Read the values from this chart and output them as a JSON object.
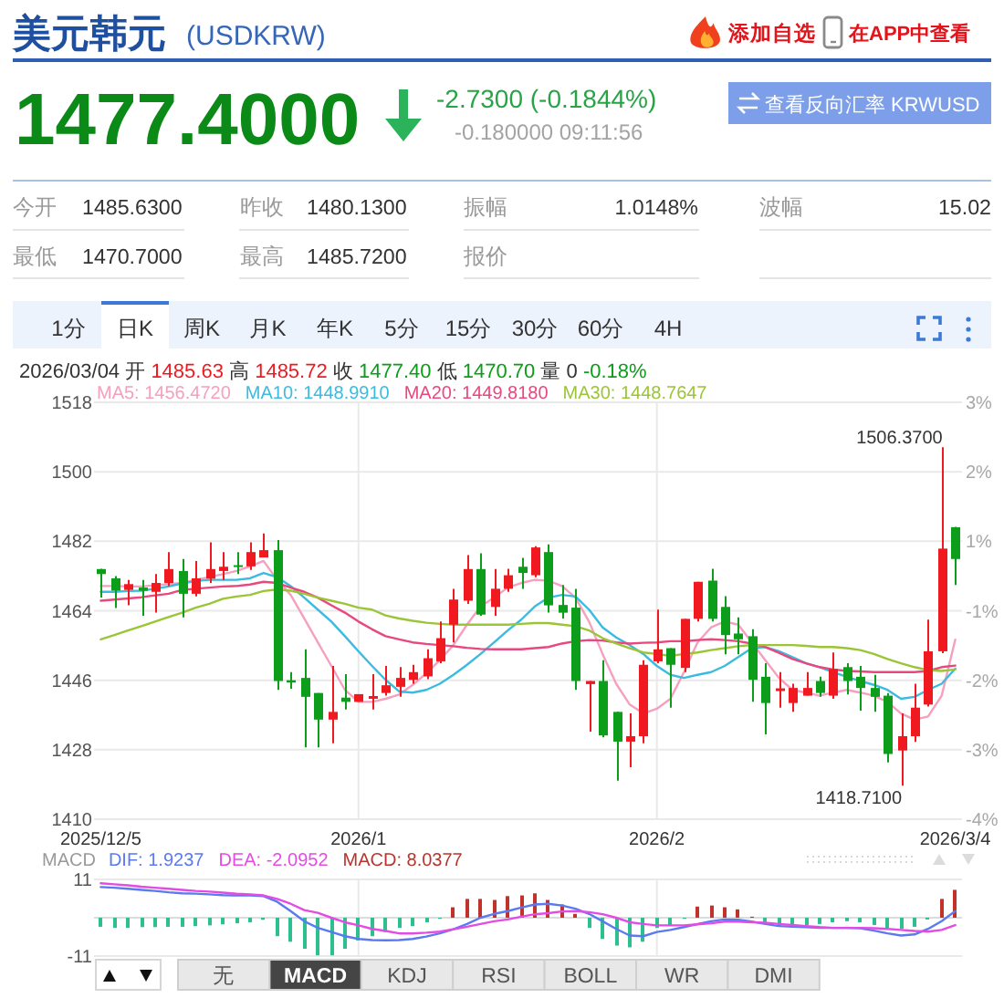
{
  "chart_data": [
    {
      "type": "other",
      "title": "美元韩元",
      "subtitle": "(USDKRW)",
      "annotations": [
        "添加自选",
        "在APP中查看",
        "1477.4000",
        "-2.7300 (-0.1844%)",
        "-0.180000 09:11:56",
        "查看反向汇率 KRWUSD",
        "今开",
        "1485.6300",
        "昨收",
        "1480.1300",
        "振幅",
        "1.0148%",
        "波幅",
        "15.02",
        "最低",
        "1470.7000",
        "最高",
        "1485.7200",
        "报价",
        "1分",
        "日K",
        "周K",
        "月K",
        "年K",
        "5分",
        "15分",
        "30分",
        "60分",
        "4H"
      ]
    },
    {
      "type": "candlestick",
      "subtitle": "2026/03/04 开 1485.63 高 1485.72 收 1477.40 低 1470.70 量 0 -0.18%",
      "categories": [
        "2025/12/5",
        null,
        null,
        null,
        null,
        null,
        null,
        null,
        null,
        null,
        null,
        null,
        null,
        null,
        null,
        null,
        null,
        null,
        null,
        "2026/1",
        null,
        null,
        null,
        null,
        null,
        null,
        null,
        null,
        null,
        null,
        null,
        null,
        null,
        null,
        null,
        null,
        null,
        null,
        null,
        null,
        null,
        "2026/2",
        null,
        null,
        null,
        null,
        null,
        null,
        null,
        null,
        null,
        null,
        null,
        null,
        null,
        null,
        null,
        null,
        null,
        null,
        null,
        null,
        null,
        "2026/3/4"
      ],
      "ohlc": [
        [
          1474.8,
          1474.9,
          1467.4,
          1473.5
        ],
        [
          1472.4,
          1473.0,
          1464.7,
          1469.2
        ],
        [
          1469.4,
          1472.0,
          1465.4,
          1470.9
        ],
        [
          1470.0,
          1472.0,
          1462.7,
          1469.2
        ],
        [
          1468.9,
          1473.5,
          1463.5,
          1471.2
        ],
        [
          1471.2,
          1479.2,
          1470.4,
          1474.8
        ],
        [
          1474.3,
          1477.4,
          1462.3,
          1468.4
        ],
        [
          1468.4,
          1476.9,
          1467.7,
          1472.4
        ],
        [
          1472.3,
          1481.7,
          1471.2,
          1474.8
        ],
        [
          1474.3,
          1479.2,
          1472.0,
          1475.4
        ],
        [
          1475.8,
          1479.2,
          1473.5,
          1475.5
        ],
        [
          1475.5,
          1481.7,
          1474.6,
          1479.2
        ],
        [
          1477.8,
          1484.0,
          1477.8,
          1479.7
        ],
        [
          1479.7,
          1482.3,
          1443.5,
          1445.8
        ],
        [
          1446.0,
          1448.1,
          1443.8,
          1445.4
        ],
        [
          1446.6,
          1454.0,
          1428.6,
          1441.7
        ],
        [
          1442.7,
          1442.7,
          1428.6,
          1435.8
        ],
        [
          1435.8,
          1449.7,
          1429.7,
          1437.8
        ],
        [
          1441.5,
          1447.6,
          1438.4,
          1440.4
        ],
        [
          1440.4,
          1442.4,
          1440.4,
          1442.4
        ],
        [
          1441.2,
          1447.6,
          1438.4,
          1441.9
        ],
        [
          1442.7,
          1449.7,
          1442.0,
          1444.7
        ],
        [
          1444.3,
          1449.4,
          1441.7,
          1446.6
        ],
        [
          1446.1,
          1450.0,
          1445.1,
          1448.1
        ],
        [
          1447.0,
          1454.0,
          1446.3,
          1451.7
        ],
        [
          1450.9,
          1461.2,
          1450.4,
          1456.9
        ],
        [
          1460.4,
          1469.7,
          1455.8,
          1466.9
        ],
        [
          1466.6,
          1478.4,
          1465.8,
          1474.8
        ],
        [
          1474.8,
          1478.9,
          1462.7,
          1463.0
        ],
        [
          1465.0,
          1474.8,
          1462.7,
          1469.7
        ],
        [
          1469.7,
          1474.9,
          1468.9,
          1473.2
        ],
        [
          1475.4,
          1477.7,
          1469.7,
          1473.8
        ],
        [
          1473.2,
          1480.7,
          1472.7,
          1480.4
        ],
        [
          1479.2,
          1481.2,
          1463.5,
          1465.4
        ],
        [
          1465.5,
          1470.7,
          1462.0,
          1463.5
        ],
        [
          1464.8,
          1469.7,
          1443.5,
          1445.8
        ],
        [
          1445.0,
          1445.8,
          1432.7,
          1445.8
        ],
        [
          1445.8,
          1451.2,
          1431.2,
          1431.7
        ],
        [
          1437.8,
          1437.8,
          1420.0,
          1430.1
        ],
        [
          1430.1,
          1437.4,
          1423.5,
          1431.5
        ],
        [
          1431.5,
          1451.2,
          1429.7,
          1450.0
        ],
        [
          1450.9,
          1464.3,
          1450.4,
          1454.0
        ],
        [
          1454.3,
          1454.3,
          1438.9,
          1450.0
        ],
        [
          1449.2,
          1461.9,
          1448.1,
          1461.9
        ],
        [
          1461.9,
          1471.5,
          1461.2,
          1471.5
        ],
        [
          1471.8,
          1474.9,
          1461.2,
          1461.9
        ],
        [
          1465.0,
          1467.8,
          1452.7,
          1457.7
        ],
        [
          1458.1,
          1462.3,
          1452.7,
          1456.6
        ],
        [
          1457.4,
          1459.2,
          1440.4,
          1446.1
        ],
        [
          1446.9,
          1450.4,
          1432.0,
          1440.1
        ],
        [
          1443.2,
          1448.1,
          1438.9,
          1443.9
        ],
        [
          1440.1,
          1445.1,
          1437.8,
          1444.0
        ],
        [
          1442.0,
          1448.1,
          1442.0,
          1444.0
        ],
        [
          1445.8,
          1446.9,
          1441.7,
          1442.7
        ],
        [
          1442.0,
          1453.2,
          1441.2,
          1448.9
        ],
        [
          1449.4,
          1450.4,
          1442.3,
          1445.8
        ],
        [
          1446.9,
          1449.7,
          1438.1,
          1444.0
        ],
        [
          1444.0,
          1447.4,
          1437.8,
          1441.7
        ],
        [
          1442.0,
          1442.7,
          1424.7,
          1426.9
        ],
        [
          1427.8,
          1437.4,
          1418.71,
          1431.5
        ],
        [
          1431.5,
          1445.1,
          1430.0,
          1438.9
        ],
        [
          1439.7,
          1461.7,
          1439.2,
          1453.5
        ],
        [
          1453.5,
          1506.37,
          1453.0,
          1480.1
        ],
        [
          1485.63,
          1485.72,
          1470.7,
          1477.4
        ]
      ],
      "colors": [
        "#0c9e1a",
        "#0c9e1a",
        "#f0191f",
        "#0c9e1a",
        "#f0191f",
        "#f0191f",
        "#0c9e1a",
        "#f0191f",
        "#f0191f",
        "#f0191f",
        "#0c9e1a",
        "#f0191f",
        "#f0191f",
        "#0c9e1a",
        "#0c9e1a",
        "#0c9e1a",
        "#0c9e1a",
        "#f0191f",
        "#0c9e1a",
        "#f0191f",
        "#f0191f",
        "#f0191f",
        "#f0191f",
        "#f0191f",
        "#f0191f",
        "#f0191f",
        "#f0191f",
        "#f0191f",
        "#0c9e1a",
        "#f0191f",
        "#f0191f",
        "#0c9e1a",
        "#f0191f",
        "#0c9e1a",
        "#0c9e1a",
        "#0c9e1a",
        "#f0191f",
        "#0c9e1a",
        "#0c9e1a",
        "#f0191f",
        "#f0191f",
        "#f0191f",
        "#0c9e1a",
        "#f0191f",
        "#f0191f",
        "#0c9e1a",
        "#0c9e1a",
        "#0c9e1a",
        "#0c9e1a",
        "#0c9e1a",
        "#f0191f",
        "#f0191f",
        "#f0191f",
        "#0c9e1a",
        "#f0191f",
        "#0c9e1a",
        "#0c9e1a",
        "#0c9e1a",
        "#0c9e1a",
        "#f0191f",
        "#f0191f",
        "#f0191f",
        "#f0191f",
        "#0c9e1a"
      ],
      "series": [
        {
          "type": "line",
          "name": "MA5: 1456.4720",
          "color": "#f5a0be",
          "values": [
            1470.4,
            1470.4,
            1470.3,
            1470.3,
            1470.6,
            1470.9,
            1471.2,
            1472.0,
            1472.7,
            1473.5,
            1474.3,
            1475.5,
            1476.9,
            1472.0,
            1468.1,
            1462.0,
            1455.8,
            1449.7,
            1443.5,
            1440.4,
            1440.4,
            1441.2,
            1442.3,
            1444.8,
            1447.8,
            1451.2,
            1455.1,
            1460.4,
            1465.1,
            1467.4,
            1470.0,
            1471.2,
            1472.0,
            1471.8,
            1470.4,
            1467.4,
            1461.2,
            1452.8,
            1445.1,
            1439.7,
            1437.4,
            1438.6,
            1441.2,
            1448.1,
            1455.8,
            1459.7,
            1461.2,
            1460.4,
            1455.8,
            1451.2,
            1446.6,
            1443.5,
            1442.8,
            1442.0,
            1442.8,
            1443.5,
            1442.8,
            1442.0,
            1440.4,
            1437.4,
            1435.8,
            1436.6,
            1442.0,
            1456.5
          ]
        },
        {
          "type": "line",
          "name": "MA10: 1448.9910",
          "color": "#3bbbe0",
          "values": [
            1468.9,
            1468.9,
            1469.1,
            1469.2,
            1469.7,
            1470.3,
            1471.1,
            1471.7,
            1472.0,
            1472.0,
            1472.0,
            1472.4,
            1473.8,
            1472.7,
            1470.4,
            1467.4,
            1464.3,
            1461.2,
            1457.4,
            1453.5,
            1449.7,
            1446.1,
            1443.1,
            1442.8,
            1443.5,
            1445.1,
            1447.4,
            1450.0,
            1452.8,
            1455.8,
            1458.9,
            1461.7,
            1465.1,
            1467.4,
            1468.1,
            1467.7,
            1464.3,
            1459.7,
            1457.1,
            1455.1,
            1452.8,
            1449.7,
            1447.4,
            1446.6,
            1447.4,
            1448.1,
            1449.7,
            1452.0,
            1454.3,
            1454.6,
            1453.5,
            1452.0,
            1450.4,
            1449.4,
            1448.1,
            1446.9,
            1445.8,
            1444.8,
            1443.5,
            1441.2,
            1441.7,
            1443.5,
            1445.1,
            1449.0
          ]
        },
        {
          "type": "line",
          "name": "MA20: 1449.8180",
          "color": "#e8487e",
          "values": [
            1466.6,
            1466.9,
            1467.2,
            1467.5,
            1468.0,
            1468.4,
            1469.4,
            1469.7,
            1470.0,
            1470.3,
            1470.4,
            1470.8,
            1471.5,
            1471.2,
            1470.0,
            1468.9,
            1467.4,
            1465.4,
            1463.5,
            1461.2,
            1459.2,
            1457.4,
            1456.6,
            1455.8,
            1455.4,
            1455.1,
            1454.8,
            1454.4,
            1454.1,
            1454.0,
            1454.0,
            1454.0,
            1454.3,
            1454.6,
            1455.5,
            1456.1,
            1456.4,
            1456.3,
            1455.8,
            1455.5,
            1455.7,
            1455.8,
            1456.1,
            1456.1,
            1456.4,
            1456.6,
            1456.4,
            1456.1,
            1455.5,
            1454.6,
            1453.1,
            1451.5,
            1450.4,
            1449.4,
            1448.8,
            1448.4,
            1448.3,
            1448.1,
            1448.1,
            1448.1,
            1448.1,
            1448.4,
            1449.4,
            1449.8
          ]
        },
        {
          "type": "line",
          "name": "MA30: 1448.7647",
          "color": "#9cc437",
          "values": [
            1456.6,
            1457.7,
            1458.9,
            1460.0,
            1461.2,
            1462.4,
            1463.5,
            1464.8,
            1465.8,
            1467.1,
            1467.7,
            1468.1,
            1469.1,
            1469.5,
            1469.2,
            1468.4,
            1467.4,
            1466.6,
            1465.8,
            1464.8,
            1464.3,
            1462.8,
            1462.0,
            1461.4,
            1460.9,
            1460.6,
            1460.4,
            1460.4,
            1460.4,
            1460.4,
            1460.4,
            1460.6,
            1460.8,
            1460.8,
            1460.4,
            1460.0,
            1458.9,
            1456.9,
            1455.5,
            1454.3,
            1453.2,
            1452.8,
            1452.3,
            1452.8,
            1453.2,
            1453.8,
            1454.3,
            1454.8,
            1455.1,
            1455.1,
            1455.1,
            1455.1,
            1454.9,
            1454.6,
            1454.6,
            1454.3,
            1453.8,
            1452.8,
            1451.5,
            1450.4,
            1449.4,
            1448.6,
            1448.4,
            1448.8
          ]
        }
      ],
      "ylim": [
        1410,
        1518
      ],
      "yticks": [
        1410,
        1428,
        1446,
        1464,
        1482,
        1500,
        1518
      ],
      "grid": true,
      "legend": "top left",
      "annotations": [
        "1506.3700",
        "1418.7100",
        "3%",
        "2%",
        "1%",
        "-1%",
        "-2%",
        "-3%",
        "-4%"
      ]
    },
    {
      "type": "bar",
      "legend_title": "MACD",
      "categories": [
        "2025/12/5",
        null,
        null,
        null,
        null,
        null,
        null,
        null,
        null,
        null,
        null,
        null,
        null,
        null,
        null,
        null,
        null,
        null,
        null,
        "2026/1",
        null,
        null,
        null,
        null,
        null,
        null,
        null,
        null,
        null,
        null,
        null,
        null,
        null,
        null,
        null,
        null,
        null,
        null,
        null,
        null,
        null,
        "2026/2",
        null,
        null,
        null,
        null,
        null,
        null,
        null,
        null,
        null,
        null,
        null,
        null,
        null,
        null,
        null,
        null,
        null,
        null,
        null,
        null,
        null,
        "2026/3/4"
      ],
      "series": [
        {
          "type": "line",
          "name": "DIF: 1.9237",
          "color": "#5b7af0",
          "values": [
            8.8,
            8.6,
            8.3,
            8.0,
            7.7,
            7.3,
            7.0,
            6.9,
            6.7,
            6.5,
            6.4,
            6.4,
            6.2,
            4.6,
            1.9,
            -1.0,
            -2.9,
            -4.1,
            -5.3,
            -6.1,
            -6.4,
            -6.5,
            -6.4,
            -6.1,
            -5.4,
            -4.5,
            -3.3,
            -1.8,
            0,
            1.1,
            1.9,
            2.9,
            3.8,
            4.0,
            3.5,
            2.6,
            1.1,
            -1.0,
            -3.2,
            -5.1,
            -5.3,
            -4.1,
            -3.5,
            -2.7,
            -1.8,
            -1.0,
            -0.5,
            -0.6,
            -1.1,
            -1.8,
            -2.4,
            -2.6,
            -2.7,
            -2.9,
            -2.9,
            -2.9,
            -3.0,
            -3.7,
            -4.5,
            -5.1,
            -4.8,
            -3.2,
            -1.0,
            1.9
          ]
        },
        {
          "type": "line",
          "name": "DEA: -2.0952",
          "color": "#e44be4",
          "values": [
            9.9,
            9.6,
            9.3,
            8.9,
            8.6,
            8.3,
            8.0,
            7.7,
            7.5,
            7.2,
            6.9,
            6.7,
            6.4,
            5.4,
            4.0,
            2.2,
            1.4,
            0,
            -1.3,
            -2.2,
            -3.2,
            -3.8,
            -4.5,
            -4.5,
            -4.3,
            -4.0,
            -3.3,
            -2.6,
            -1.8,
            -1.0,
            -0.5,
            0.3,
            1.0,
            1.3,
            1.8,
            1.9,
            1.6,
            1.0,
            0,
            -1.3,
            -1.8,
            -2.2,
            -2.2,
            -2.2,
            -1.9,
            -1.6,
            -1.1,
            -1.1,
            -1.3,
            -1.4,
            -1.8,
            -2.1,
            -2.4,
            -2.7,
            -2.9,
            -2.9,
            -2.9,
            -3.0,
            -3.2,
            -3.5,
            -3.8,
            -4.0,
            -3.5,
            -2.1
          ]
        },
        {
          "type": "bar",
          "name": "MACD: 8.0377",
          "color": "#b8342c",
          "colors": [
            "#2dbf8f",
            "#2dbf8f",
            "#2dbf8f",
            "#2dbf8f",
            "#2dbf8f",
            "#2dbf8f",
            "#2dbf8f",
            "#2dbf8f",
            "#2dbf8f",
            "#2dbf8f",
            "#2dbf8f",
            "#2dbf8f",
            "#2dbf8f",
            "#2dbf8f",
            "#2dbf8f",
            "#2dbf8f",
            "#2dbf8f",
            "#2dbf8f",
            "#2dbf8f",
            "#2dbf8f",
            "#2dbf8f",
            "#2dbf8f",
            "#2dbf8f",
            "#2dbf8f",
            "#2dbf8f",
            "#2dbf8f",
            "#c1322b",
            "#c1322b",
            "#c1322b",
            "#c1322b",
            "#c1322b",
            "#c1322b",
            "#c1322b",
            "#c1322b",
            "#c1322b",
            "#c1322b",
            "#2dbf8f",
            "#2dbf8f",
            "#2dbf8f",
            "#2dbf8f",
            "#2dbf8f",
            "#2dbf8f",
            "#2dbf8f",
            "#2dbf8f",
            "#c1322b",
            "#c1322b",
            "#c1322b",
            "#c1322b",
            "#c1322b",
            "#2dbf8f",
            "#2dbf8f",
            "#2dbf8f",
            "#2dbf8f",
            "#2dbf8f",
            "#2dbf8f",
            "#2dbf8f",
            "#2dbf8f",
            "#2dbf8f",
            "#2dbf8f",
            "#2dbf8f",
            "#2dbf8f",
            "#2dbf8f",
            "#c1322b",
            "#c1322b"
          ],
          "values": [
            -2.6,
            -2.9,
            -2.9,
            -2.7,
            -2.7,
            -2.6,
            -2.6,
            -2.4,
            -2.2,
            -1.9,
            -1.6,
            -1.3,
            -0.6,
            -5.3,
            -6.9,
            -8.9,
            -10.8,
            -10.8,
            -8.9,
            -6.5,
            -5.3,
            -4.1,
            -2.9,
            -2.4,
            -1.3,
            -0.3,
            3.0,
            5.4,
            5.4,
            5.1,
            6.2,
            6.4,
            7.0,
            5.1,
            3.8,
            1.1,
            -2.9,
            -6.1,
            -8.0,
            -8.5,
            -6.9,
            -2.9,
            -2.1,
            -0.3,
            3.2,
            3.5,
            3.0,
            2.4,
            0.3,
            -1.3,
            -2.6,
            -2.6,
            -2.1,
            -1.8,
            -1.3,
            -1.0,
            -1.3,
            -2.1,
            -2.9,
            -3.2,
            -2.6,
            -0.5,
            5.4,
            8.0
          ]
        }
      ],
      "ylim": [
        -11,
        11
      ],
      "yticks": [
        -11,
        11
      ],
      "grid": true,
      "legend": "top left",
      "tick_labels": "y",
      "annotations": [
        "无",
        "MACD",
        "KDJ",
        "RSI",
        "BOLL",
        "WR",
        "DMI"
      ]
    }
  ]
}
